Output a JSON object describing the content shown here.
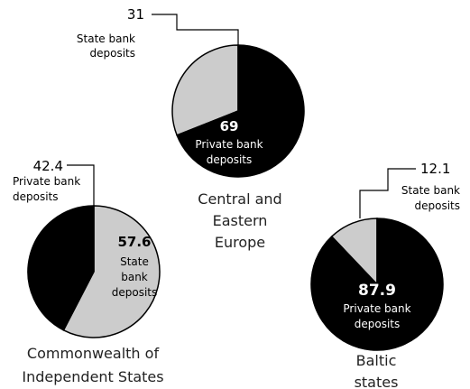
{
  "chart_data": [
    {
      "type": "pie",
      "title": "Central and Eastern Europe",
      "title_lines": [
        "Central and",
        "Eastern",
        "Europe"
      ],
      "slices": [
        {
          "label": "State bank deposits",
          "label_lines": [
            "State bank",
            "deposits"
          ],
          "value": 31,
          "value_text": "31",
          "color": "#cccccc"
        },
        {
          "label": "Private bank deposits",
          "label_lines": [
            "Private bank",
            "deposits"
          ],
          "value": 69,
          "value_text": "69",
          "color": "#000000"
        }
      ]
    },
    {
      "type": "pie",
      "title": "Commonwealth of Independent States",
      "title_lines": [
        "Commonwealth of",
        "Independent States"
      ],
      "slices": [
        {
          "label": "State bank deposits",
          "label_lines": [
            "State",
            "bank",
            "deposits"
          ],
          "value": 57.6,
          "value_text": "57.6",
          "color": "#cccccc"
        },
        {
          "label": "Private bank deposits",
          "label_lines": [
            "Private bank",
            "deposits"
          ],
          "value": 42.4,
          "value_text": "42.4",
          "color": "#000000"
        }
      ]
    },
    {
      "type": "pie",
      "title": "Baltic states",
      "title_lines": [
        "Baltic",
        "states"
      ],
      "slices": [
        {
          "label": "State bank deposits",
          "label_lines": [
            "State bank",
            "deposits"
          ],
          "value": 12.1,
          "value_text": "12.1",
          "color": "#cccccc"
        },
        {
          "label": "Private bank deposits",
          "label_lines": [
            "Private bank",
            "deposits"
          ],
          "value": 87.9,
          "value_text": "87.9",
          "color": "#000000"
        }
      ]
    }
  ]
}
